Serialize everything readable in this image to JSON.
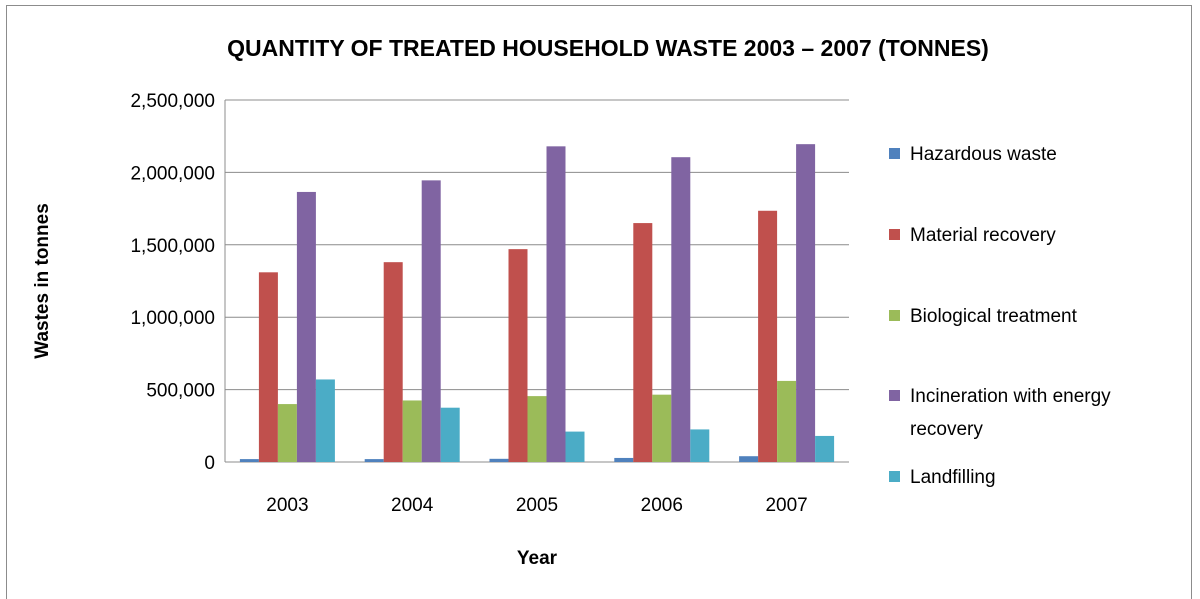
{
  "chart_data": {
    "type": "bar",
    "title": "QUANTITY OF TREATED HOUSEHOLD WASTE 2003 – 2007 (TONNES)",
    "xlabel": "Year",
    "ylabel": "Wastes in tonnes",
    "categories": [
      "2003",
      "2004",
      "2005",
      "2006",
      "2007"
    ],
    "ylim": [
      0,
      2500000
    ],
    "yticks": [
      0,
      500000,
      1000000,
      1500000,
      2000000,
      2500000
    ],
    "ytick_labels": [
      "0",
      "500,000",
      "1,000,000",
      "1,500,000",
      "2,000,000",
      "2,500,000"
    ],
    "grid": true,
    "legend_position": "right",
    "series": [
      {
        "name": "Hazardous waste",
        "color": "#4f81bd",
        "values": [
          20000,
          20000,
          22000,
          28000,
          40000
        ]
      },
      {
        "name": "Material recovery",
        "color": "#c0504d",
        "values": [
          1310000,
          1380000,
          1470000,
          1650000,
          1735000
        ]
      },
      {
        "name": "Biological treatment",
        "color": "#9bbb59",
        "values": [
          400000,
          425000,
          455000,
          465000,
          560000
        ]
      },
      {
        "name": "Incineration with energy recovery",
        "color": "#8064a2",
        "values": [
          1865000,
          1945000,
          2180000,
          2105000,
          2195000
        ]
      },
      {
        "name": "Landfilling",
        "color": "#4bacc6",
        "values": [
          570000,
          375000,
          210000,
          225000,
          180000
        ]
      }
    ]
  }
}
